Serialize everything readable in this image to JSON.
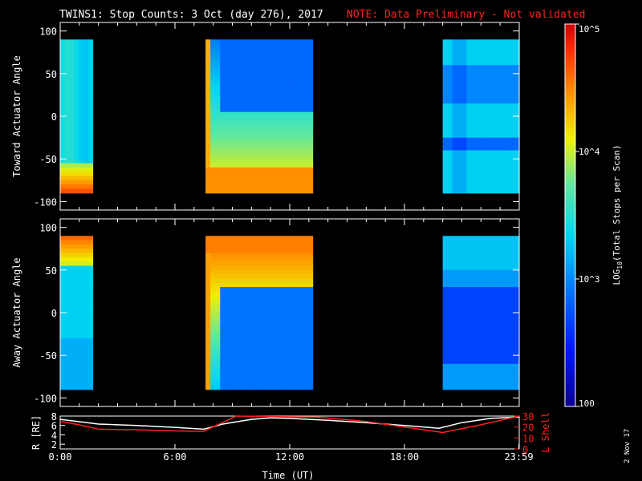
{
  "header": {
    "title": "TWINS1: Stop Counts:  3 Oct (day 276), 2017",
    "note": "NOTE: Data Preliminary - Not validated",
    "note_color": "#ff2020"
  },
  "colorbar": {
    "label": "LOG10(Total Stops per Scan)",
    "ticks": [
      {
        "label": "100",
        "value": 100
      },
      {
        "label": "10^3",
        "value": 1000
      },
      {
        "label": "10^4",
        "value": 10000
      },
      {
        "label": "10^5",
        "value": 100000
      }
    ],
    "scale": "log",
    "colormap": "rainbow"
  },
  "footer": {
    "xlabel": "Time (UT)",
    "date_stamp": "2 Nov 17"
  },
  "chart_data": [
    {
      "type": "heatmap",
      "ylabel": "Toward Actuator Angle",
      "ylim": [
        -110,
        110
      ],
      "yticks": [
        100,
        50,
        0,
        -50,
        -100
      ],
      "data_range": [
        -90,
        90
      ],
      "xlim": [
        0,
        24
      ],
      "log_counts_range": [
        2,
        5
      ],
      "segments": [
        {
          "start": 0.0,
          "end": 1.7,
          "profile": "toward-early"
        },
        {
          "start": 7.6,
          "end": 13.2,
          "profile": "toward-mid"
        },
        {
          "start": 20.0,
          "end": 24.0,
          "profile": "toward-late"
        }
      ]
    },
    {
      "type": "heatmap",
      "ylabel": "Away Actuator Angle",
      "ylim": [
        -110,
        110
      ],
      "yticks": [
        100,
        50,
        0,
        -50,
        -100
      ],
      "data_range": [
        -90,
        90
      ],
      "xlim": [
        0,
        24
      ],
      "log_counts_range": [
        2,
        5
      ],
      "segments": [
        {
          "start": 0.0,
          "end": 1.7,
          "profile": "away-early"
        },
        {
          "start": 7.6,
          "end": 13.2,
          "profile": "away-mid"
        },
        {
          "start": 20.0,
          "end": 24.0,
          "profile": "away-late"
        }
      ]
    },
    {
      "type": "line",
      "xlabel": "Time (UT)",
      "xlim": [
        0,
        24
      ],
      "xticks": [
        0,
        6,
        12,
        18,
        23.98
      ],
      "xtick_labels": [
        "0:00",
        "6:00",
        "12:00",
        "18:00",
        "23:59"
      ],
      "ylabel_left": "R [RE]",
      "ylim_left": [
        1,
        8
      ],
      "yticks_left": [
        2,
        4,
        6,
        8
      ],
      "ylabel_right": "L Shell",
      "ylim_right": [
        0,
        30
      ],
      "yticks_right": [
        0,
        10,
        20,
        30
      ],
      "series": [
        {
          "name": "R [RE]",
          "color": "#ffffff",
          "axis": "left",
          "x": [
            0,
            1,
            2,
            4,
            6,
            7.5,
            8.5,
            10,
            11,
            12,
            14,
            16,
            18,
            19.8,
            21,
            22.5,
            24
          ],
          "y": [
            7.3,
            6.8,
            6.3,
            6.0,
            5.6,
            5.2,
            6.3,
            7.3,
            7.6,
            7.5,
            7.1,
            6.6,
            6.0,
            5.4,
            6.6,
            7.5,
            7.8
          ]
        },
        {
          "name": "L Shell",
          "color": "#ff2020",
          "axis": "right",
          "x": [
            0,
            1,
            2,
            4,
            6,
            7.5,
            9.2,
            9.2,
            13.5,
            16,
            18,
            20,
            22,
            24
          ],
          "y": [
            25,
            22,
            18,
            17.5,
            16.5,
            16,
            30,
            30,
            29,
            25,
            20,
            15,
            22,
            30
          ]
        }
      ]
    }
  ]
}
